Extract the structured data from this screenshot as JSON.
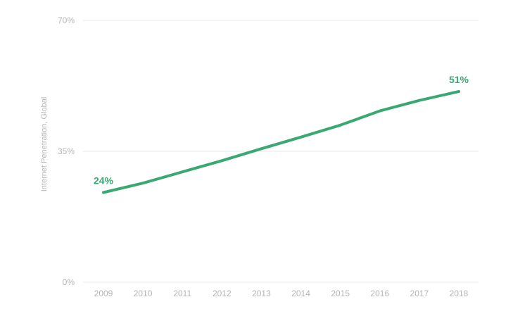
{
  "chart_data": {
    "type": "line",
    "title": "",
    "xlabel": "",
    "ylabel": "Internet Penetration, Global",
    "x": [
      "2009",
      "2010",
      "2011",
      "2012",
      "2013",
      "2014",
      "2015",
      "2016",
      "2017",
      "2018"
    ],
    "series": [
      {
        "values": [
          24,
          26.5,
          29.5,
          32.5,
          35.7,
          38.8,
          42,
          45.8,
          48.6,
          51
        ],
        "color": "#3aa872"
      }
    ],
    "data_labels": [
      {
        "x": "2009",
        "text": "24%"
      },
      {
        "x": "2018",
        "text": "51%"
      }
    ],
    "ylim": [
      0,
      70
    ],
    "yticks": [
      {
        "value": 0,
        "label": "0%"
      },
      {
        "value": 35,
        "label": "35%"
      },
      {
        "value": 70,
        "label": "70%"
      }
    ],
    "grid": true,
    "legend": "none",
    "colors": {
      "line": "#3aa872",
      "label": "#3aa872",
      "grid": "#e8e8e8",
      "tick": "#b5b5b5"
    }
  }
}
